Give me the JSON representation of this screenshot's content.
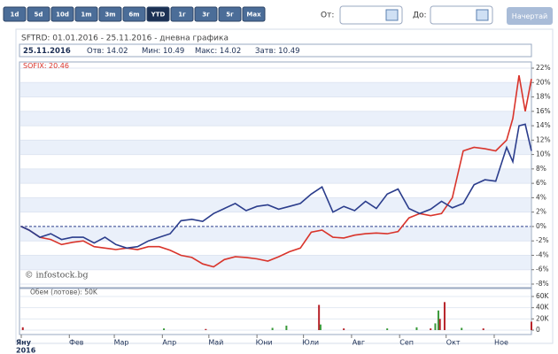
{
  "toolbar": {
    "ranges": [
      "1d",
      "5d",
      "10d",
      "1m",
      "3m",
      "6m",
      "YTD",
      "1г",
      "3г",
      "5г",
      "Max"
    ],
    "selected": 6,
    "from_label": "От:",
    "to_label": "До:",
    "button": "Начертай"
  },
  "chart_data": {
    "type": "line",
    "title": "SFTRD: 01.01.2016 - 25.11.2016 - дневна графика",
    "info": [
      "25.11.2016",
      "Отв: 14.02",
      "Мин: 10.49",
      "Макс: 14.02",
      "Затв: 10.49"
    ],
    "watermark": "© infostock.bg",
    "x": [
      1,
      6,
      13,
      20,
      27,
      34,
      41,
      48,
      55,
      62,
      69,
      76,
      83,
      90,
      97,
      104,
      111,
      118,
      125,
      132,
      139,
      146,
      153,
      160,
      167,
      174,
      181,
      188,
      195,
      202,
      209,
      216,
      223,
      230,
      237,
      244,
      251,
      258,
      265,
      272,
      279,
      286,
      293,
      300,
      307,
      314,
      318,
      322,
      326,
      330
    ],
    "xlim": [
      1,
      330
    ],
    "xticks": [
      {
        "value": 1,
        "label": "Яну"
      },
      {
        "value": 32,
        "label": "Фев"
      },
      {
        "value": 61,
        "label": "Мар"
      },
      {
        "value": 92,
        "label": "Апр"
      },
      {
        "value": 122,
        "label": "Май"
      },
      {
        "value": 153,
        "label": "Юни"
      },
      {
        "value": 183,
        "label": "Юли"
      },
      {
        "value": 214,
        "label": "Авг"
      },
      {
        "value": 245,
        "label": "Сеп"
      },
      {
        "value": 275,
        "label": "Окт"
      },
      {
        "value": 306,
        "label": "Ное"
      }
    ],
    "x_year": "2016",
    "ylim": [
      -8,
      22
    ],
    "yticks": [
      {
        "value": -8,
        "label": "-8%"
      },
      {
        "value": -6,
        "label": "-6%"
      },
      {
        "value": -4,
        "label": "-4%"
      },
      {
        "value": -2,
        "label": "-2%"
      },
      {
        "value": 0,
        "label": "0%"
      },
      {
        "value": 2,
        "label": "2%"
      },
      {
        "value": 4,
        "label": "4%"
      },
      {
        "value": 6,
        "label": "6%"
      },
      {
        "value": 8,
        "label": "8%"
      },
      {
        "value": 10,
        "label": "10%"
      },
      {
        "value": 12,
        "label": "12%"
      },
      {
        "value": 14,
        "label": "14%"
      },
      {
        "value": 16,
        "label": "16%"
      },
      {
        "value": 18,
        "label": "18%"
      },
      {
        "value": 20,
        "label": "20%"
      },
      {
        "value": 22,
        "label": "22%"
      }
    ],
    "zero_line": true,
    "series": [
      {
        "color": "#2b3d8c",
        "values": [
          0,
          -0.5,
          -1.5,
          -1,
          -1.8,
          -1.5,
          -1.5,
          -2.3,
          -1.5,
          -2.5,
          -3,
          -2.8,
          -2,
          -1.5,
          -1,
          0.8,
          1,
          0.7,
          1.8,
          2.5,
          3.2,
          2.2,
          2.8,
          3,
          2.4,
          2.8,
          3.2,
          4.5,
          5.5,
          2,
          2.8,
          2.2,
          3.5,
          2.5,
          4.5,
          5.2,
          2.5,
          1.8,
          2.4,
          3.5,
          2.6,
          3.2,
          5.8,
          6.5,
          6.3,
          11,
          9,
          14,
          14.2,
          10.5
        ]
      },
      {
        "name": "SOFIX: 20.46",
        "color": "#d9342b",
        "values": [
          0,
          -0.5,
          -1.5,
          -1.8,
          -2.5,
          -2.2,
          -2,
          -2.8,
          -3,
          -3.2,
          -3,
          -3.2,
          -2.8,
          -2.8,
          -3.3,
          -4,
          -4.3,
          -5.2,
          -5.6,
          -4.6,
          -4.2,
          -4.3,
          -4.5,
          -4.8,
          -4.2,
          -3.5,
          -3,
          -0.8,
          -0.5,
          -1.5,
          -1.6,
          -1.2,
          -1,
          -0.9,
          -1,
          -0.7,
          1.2,
          1.8,
          1.5,
          1.8,
          4,
          10.5,
          11,
          10.8,
          10.5,
          12,
          15,
          21,
          16,
          20.5
        ]
      }
    ],
    "volume": {
      "type": "bar",
      "title": "Обем (лотове): 50K",
      "x": [
        2,
        93,
        120,
        163,
        172,
        193,
        194,
        209,
        237,
        256,
        265,
        268,
        270,
        271,
        274,
        285,
        299,
        330
      ],
      "values": [
        5000,
        3000,
        2000,
        4000,
        8000,
        45000,
        10000,
        3000,
        3000,
        5000,
        3000,
        12000,
        35000,
        20000,
        50000,
        4000,
        3000,
        15000
      ],
      "colors": [
        "#b8232a",
        "#3a9a3a",
        "#b8232a",
        "#3a9a3a",
        "#3a9a3a",
        "#b8232a",
        "#3a9a3a",
        "#b8232a",
        "#3a9a3a",
        "#3a9a3a",
        "#b8232a",
        "#3a9a3a",
        "#3a9a3a",
        "#b8232a",
        "#b8232a",
        "#3a9a3a",
        "#b8232a",
        "#b8232a"
      ],
      "ylim": [
        0,
        60000
      ],
      "yticks": [
        {
          "value": 0,
          "label": "0"
        },
        {
          "value": 20000,
          "label": "20K"
        },
        {
          "value": 40000,
          "label": "40K"
        },
        {
          "value": 60000,
          "label": "60K"
        }
      ]
    }
  }
}
